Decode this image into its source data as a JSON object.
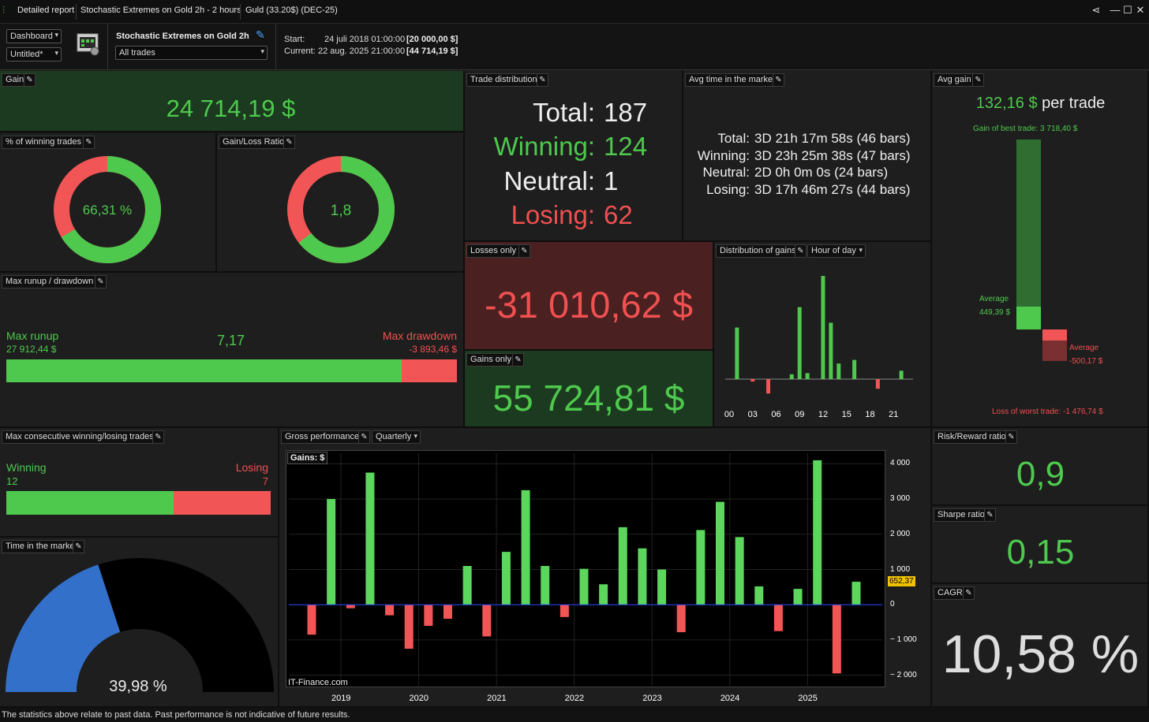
{
  "window": {
    "tabs": [
      "Detailed report",
      "Stochastic Extremes on Gold 2h - 2 hours",
      "Guld (33.20$) (DEC-25)"
    ],
    "buttons": {
      "share": "⋘",
      "min": "—",
      "max": "☐",
      "close": "✕"
    }
  },
  "toolbar": {
    "view_select": "Dashboard",
    "layout_select": "Untitled*",
    "strategy_name": "Stochastic Extremes on Gold 2h",
    "trades_filter": "All trades",
    "start_label": "Start:",
    "start_value": "24 juli 2018 01:00:00",
    "start_capital": "[20 000,00 $]",
    "current_label": "Current:",
    "current_value": "22 aug. 2025 21:00:00",
    "current_capital": "[44 714,19 $]"
  },
  "gain": {
    "title": "Gain",
    "value": "24 714,19 $"
  },
  "winning_pct": {
    "title": "% of winning trades",
    "value": "66,31 %",
    "fraction": 0.6631
  },
  "gain_loss_ratio": {
    "title": "Gain/Loss Ratio",
    "value": "1,8",
    "fraction": 0.643
  },
  "runup": {
    "title": "Max runup / drawdown",
    "runup_label": "Max runup",
    "runup_value": "27 912,44 $",
    "ratio": "7,17",
    "drawdown_label": "Max drawdown",
    "drawdown_value": "-3 893,46 $",
    "runup_fraction": 0.8776
  },
  "trade_distribution": {
    "title": "Trade distribution",
    "total_label": "Total:",
    "total": "187",
    "winning_label": "Winning:",
    "winning": "124",
    "neutral_label": "Neutral:",
    "neutral": "1",
    "losing_label": "Losing:",
    "losing": "62"
  },
  "avg_time": {
    "title": "Avg time in the market",
    "total_label": "Total:",
    "total": "3D 21h 17m 58s (46 bars)",
    "winning_label": "Winning:",
    "winning": "3D 23h 25m 38s (47 bars)",
    "neutral_label": "Neutral:",
    "neutral": "2D 0h 0m 0s (24 bars)",
    "losing_label": "Losing:",
    "losing": "3D 17h 46m 27s (44 bars)"
  },
  "avg_gain": {
    "title": "Avg gain",
    "value": "132,16 $",
    "suffix": "per trade",
    "best_label": "Gain of best trade: 3 718,40 $",
    "avg_win_label": "Average",
    "avg_win_value": "449,39 $",
    "avg_loss_label": "Average",
    "avg_loss_value": "-500,17 $",
    "worst_label": "Loss of worst trade: -1 476,74 $",
    "best": 3718.4,
    "avg_win": 449.39,
    "avg_loss": -500.17,
    "worst": -1476.74
  },
  "losses_only": {
    "title": "Losses only",
    "value": "-31 010,62 $"
  },
  "gains_only": {
    "title": "Gains only",
    "value": "55 724,81 $"
  },
  "distribution": {
    "title": "Distribution of gains",
    "mode": "Hour of day"
  },
  "max_consecutive": {
    "title": "Max consecutive winning/losing trades",
    "win_label": "Winning",
    "win_value": "12",
    "lose_label": "Losing",
    "lose_value": "7",
    "win_fraction": 0.632
  },
  "time_in_market": {
    "title": "Time in the market",
    "value": "39,98 %",
    "fraction": 0.3998
  },
  "gross": {
    "title": "Gross performance",
    "period": "Quarterly",
    "chart_label": "Gains: $",
    "watermark": "IT-Finance.com",
    "last_value": "652,37"
  },
  "risk_reward": {
    "title": "Risk/Reward ratio",
    "value": "0,9"
  },
  "sharpe": {
    "title": "Sharpe ratio",
    "value": "0,15"
  },
  "cagr": {
    "title": "CAGR",
    "value": "10,58 %"
  },
  "footer": "The statistics above relate to past data. Past performance is not indicative of future results.",
  "chart_data": [
    {
      "type": "bar",
      "title": "Distribution of gains",
      "categories": [
        "00",
        "01",
        "02",
        "03",
        "04",
        "05",
        "06",
        "07",
        "08",
        "09",
        "10",
        "11",
        "12",
        "13",
        "14",
        "15",
        "16",
        "17",
        "18",
        "19",
        "20",
        "21",
        "22",
        "23"
      ],
      "x_tick_labels": [
        "00",
        "03",
        "06",
        "09",
        "12",
        "15",
        "18",
        "21"
      ],
      "values": [
        0,
        430,
        0,
        -20,
        0,
        -120,
        0,
        0,
        40,
        600,
        50,
        0,
        860,
        470,
        130,
        0,
        160,
        0,
        0,
        -80,
        0,
        0,
        70,
        0
      ],
      "ylim": [
        -150,
        880
      ]
    },
    {
      "type": "bar",
      "title": "Gross performance",
      "ylabel": "Gains: $",
      "x_tick_labels": [
        "2019",
        "2020",
        "2021",
        "2022",
        "2023",
        "2024",
        "2025"
      ],
      "y_tick_labels": [
        "4 000",
        "3 000",
        "2 000",
        "1 000",
        "0",
        "− 1 000",
        "− 2 000"
      ],
      "categories": [
        "2018Q3",
        "2018Q4",
        "2019Q1",
        "2019Q2",
        "2019Q3",
        "2019Q4",
        "2020Q1",
        "2020Q2",
        "2020Q3",
        "2020Q4",
        "2021Q1",
        "2021Q2",
        "2021Q3",
        "2021Q4",
        "2022Q1",
        "2022Q2",
        "2022Q3",
        "2022Q4",
        "2023Q1",
        "2023Q2",
        "2023Q3",
        "2023Q4",
        "2024Q1",
        "2024Q2",
        "2024Q3",
        "2024Q4",
        "2025Q1",
        "2025Q2",
        "2025Q3"
      ],
      "values": [
        -850,
        3000,
        -100,
        3750,
        -300,
        -1250,
        -600,
        -400,
        1100,
        -900,
        1500,
        3250,
        1100,
        -350,
        1020,
        580,
        2200,
        1600,
        1000,
        -780,
        2120,
        2920,
        1920,
        520,
        -750,
        450,
        4100,
        -1950,
        652.37
      ],
      "ylim": [
        -2300,
        4300
      ],
      "watermark": "IT-Finance.com"
    }
  ]
}
